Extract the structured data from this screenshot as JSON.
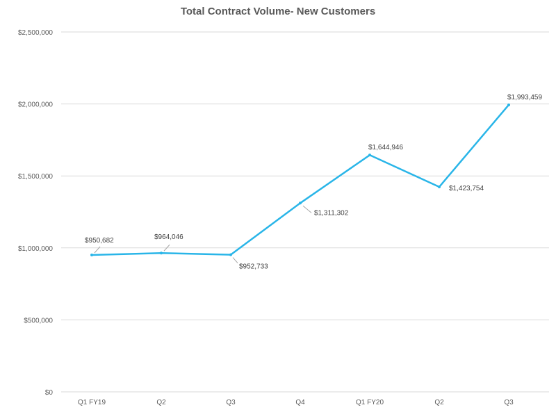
{
  "chart_data": {
    "type": "line",
    "title": "Total Contract Volume- New Customers",
    "xlabel": "",
    "ylabel": "",
    "categories": [
      "Q1 FY19",
      "Q2",
      "Q3",
      "Q4",
      "Q1 FY20",
      "Q2",
      "Q3"
    ],
    "series": [
      {
        "values": [
          950682,
          964046,
          952733,
          1311302,
          1644946,
          1423754,
          1993459
        ],
        "data_labels": [
          "$950,682",
          "$964,046",
          "$952,733",
          "$1,311,302",
          "$1,644,946",
          "$1,423,754",
          "$1,993,459"
        ],
        "color": "#29B5E8"
      }
    ],
    "ylim": [
      0,
      2500000
    ],
    "y_ticks": [
      0,
      500000,
      1000000,
      1500000,
      2000000,
      2500000
    ],
    "y_tick_labels": [
      "$0",
      "$500,000",
      "$1,000,000",
      "$1,500,000",
      "$2,000,000",
      "$2,500,000"
    ],
    "grid": true,
    "legend": "none"
  }
}
